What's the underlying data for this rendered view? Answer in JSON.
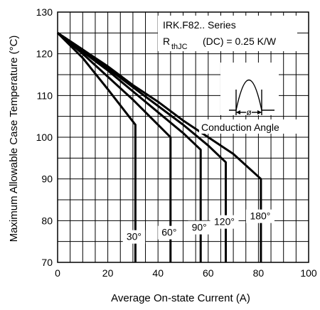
{
  "chart_data": {
    "type": "line",
    "title": "",
    "xlabel": "Average On-state Current (A)",
    "ylabel": "Maximum Allowable Case Temperature (°C)",
    "xlim": [
      0,
      100
    ],
    "ylim": [
      70,
      130
    ],
    "x_ticks": [
      0,
      20,
      40,
      60,
      80,
      100
    ],
    "y_ticks": [
      70,
      80,
      90,
      100,
      110,
      120,
      130
    ],
    "x_tick_labels": [
      "0",
      "20",
      "40",
      "60",
      "80",
      "100"
    ],
    "y_tick_labels": [
      "70",
      "80",
      "90",
      "100",
      "110",
      "120",
      "130"
    ],
    "grid": true,
    "annotations": {
      "series_title": "IRK.F82.. Series",
      "rthjc_r": "R",
      "rthjc_sub": "thJC",
      "rthjc_rest": "(DC) = 0.25 K/W",
      "conduction_angle": "Conduction Angle",
      "phi_symbol": "ø"
    },
    "series": [
      {
        "name": "30°",
        "x": [
          0,
          10,
          20,
          31,
          31
        ],
        "y": [
          125,
          119,
          111.5,
          103,
          70
        ]
      },
      {
        "name": "60°",
        "x": [
          0,
          10,
          20,
          30,
          40,
          45,
          45
        ],
        "y": [
          125,
          120,
          114.5,
          109,
          103,
          100,
          70
        ]
      },
      {
        "name": "90°",
        "x": [
          0,
          10,
          20,
          30,
          40,
          50,
          57,
          57
        ],
        "y": [
          125,
          120.5,
          116,
          111,
          106,
          101,
          97,
          70
        ]
      },
      {
        "name": "120°",
        "x": [
          0,
          10,
          20,
          30,
          40,
          50,
          60,
          67,
          67
        ],
        "y": [
          125,
          121,
          116.5,
          112,
          107.5,
          103,
          98,
          94,
          70
        ]
      },
      {
        "name": "180°",
        "x": [
          0,
          10,
          20,
          30,
          40,
          50,
          60,
          70,
          81,
          81
        ],
        "y": [
          125,
          121,
          117,
          112.5,
          108.5,
          104,
          100,
          96,
          90,
          70
        ]
      }
    ]
  }
}
